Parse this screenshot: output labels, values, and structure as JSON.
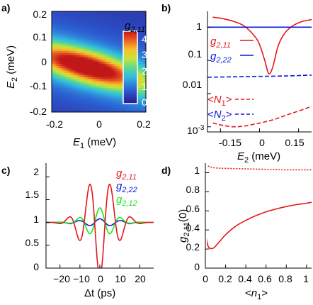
{
  "chart_data": [
    {
      "panel": "a)",
      "type": "heatmap",
      "xlabel": "E1 (meV)",
      "ylabel": "E2 (meV)",
      "xlim": [
        -0.2,
        0.2
      ],
      "ylim": [
        -0.2,
        0.2
      ],
      "x_ticks": [
        "-0.2",
        "0",
        "0.2"
      ],
      "y_ticks": [
        "0.2",
        "0.1",
        "0",
        "-0.1",
        "-0.2"
      ],
      "colorbar": {
        "label": "g2,11",
        "range": [
          0,
          4.5
        ],
        "ticks": [
          "4",
          "3",
          "2",
          "1",
          "0"
        ]
      },
      "feature": {
        "description_value_min": 0,
        "value_max": 4.5,
        "peak_center": [
          -0.05,
          -0.02
        ],
        "peak_tilt_slope": -0.25
      }
    },
    {
      "panel": "b)",
      "type": "line",
      "xlabel": "E2 (meV)",
      "x_ticks": [
        "-0.15",
        "0",
        "0.15"
      ],
      "y_ticks": [
        "1",
        "0.1",
        "0.01",
        "10-3"
      ],
      "xlim": [
        -0.2,
        0.2
      ],
      "ylim": [
        0.0007,
        3
      ],
      "yscale": "log",
      "series": [
        {
          "name": "g2,11",
          "color": "#e8141b",
          "style": "solid",
          "x": [
            -0.18,
            -0.14,
            -0.1,
            -0.06,
            -0.02,
            0.0,
            0.02,
            0.035,
            0.05,
            0.07,
            0.09,
            0.12,
            0.16,
            0.2
          ],
          "y": [
            2.0,
            1.8,
            1.5,
            1.1,
            0.55,
            0.3,
            0.1,
            0.04,
            0.06,
            0.25,
            0.55,
            1.0,
            1.45,
            1.7
          ]
        },
        {
          "name": "g2,22",
          "color": "#0a1ad6",
          "style": "solid",
          "x": [
            -0.2,
            0.2
          ],
          "y": [
            1.0,
            1.0
          ]
        },
        {
          "name": "<N1>",
          "color": "#e8141b",
          "style": "dashed",
          "x": [
            -0.18,
            -0.14,
            -0.1,
            -0.06,
            -0.02,
            0.02,
            0.06,
            0.1,
            0.14,
            0.18,
            0.2
          ],
          "y": [
            0.0013,
            0.0011,
            0.001,
            0.00105,
            0.0012,
            0.0014,
            0.0017,
            0.0022,
            0.0028,
            0.0036,
            0.0042
          ]
        },
        {
          "name": "<N2>",
          "color": "#0a1ad6",
          "style": "dashed",
          "x": [
            -0.2,
            -0.1,
            0.0,
            0.1,
            0.2
          ],
          "y": [
            0.031,
            0.032,
            0.033,
            0.034,
            0.036
          ]
        }
      ]
    },
    {
      "panel": "c)",
      "type": "line",
      "xlabel": "Δt (ps)",
      "x_ticks": [
        "−20",
        "−10",
        "0",
        "10",
        "20"
      ],
      "y_ticks": [
        "0",
        "0.5",
        "1",
        "1.5",
        "2"
      ],
      "xlim": [
        -27,
        27
      ],
      "ylim": [
        0,
        2.3
      ],
      "series": [
        {
          "name": "g2,11",
          "color": "#e8141b",
          "formula": "1 + 1.2*exp(-(t/9)^2)*cos(0.58*t) - ... sampled",
          "x_range": [
            -27,
            27
          ]
        },
        {
          "name": "g2,22",
          "color": "#0a1ad6",
          "x_range": [
            -27,
            27
          ]
        },
        {
          "name": "g2,12",
          "color": "#17e817",
          "x_range": [
            -27,
            27
          ]
        }
      ]
    },
    {
      "panel": "d)",
      "type": "line",
      "xlabel": "<n1>",
      "ylabel": "g2,11(0)",
      "x_ticks": [
        "0",
        "0.2",
        "0.4",
        "0.6",
        "0.8",
        "1"
      ],
      "y_ticks": [
        "1",
        "0.8",
        "0.6",
        "0.4",
        "0.2",
        "0"
      ],
      "xlim": [
        0,
        1.05
      ],
      "ylim": [
        0,
        1.1
      ],
      "series": [
        {
          "name": "solid",
          "color": "#e8141b",
          "style": "solid",
          "x": [
            0.0,
            0.02,
            0.04,
            0.06,
            0.08,
            0.1,
            0.15,
            0.2,
            0.3,
            0.4,
            0.5,
            0.6,
            0.7,
            0.8,
            0.9,
            1.0,
            1.05
          ],
          "y": [
            0.37,
            0.25,
            0.21,
            0.205,
            0.21,
            0.23,
            0.29,
            0.35,
            0.44,
            0.5,
            0.55,
            0.59,
            0.62,
            0.645,
            0.665,
            0.68,
            0.69
          ]
        },
        {
          "name": "dotted",
          "color": "#e8141b",
          "style": "dotted",
          "x": [
            0.0,
            0.05,
            0.1,
            0.2,
            0.4,
            0.6,
            0.8,
            1.0,
            1.05
          ],
          "y": [
            1.08,
            1.06,
            1.05,
            1.045,
            1.04,
            1.035,
            1.03,
            1.03,
            1.03
          ]
        }
      ]
    }
  ],
  "labels": {
    "panel_a": "a)",
    "panel_b": "b)",
    "panel_c": "c)",
    "panel_d": "d)"
  }
}
